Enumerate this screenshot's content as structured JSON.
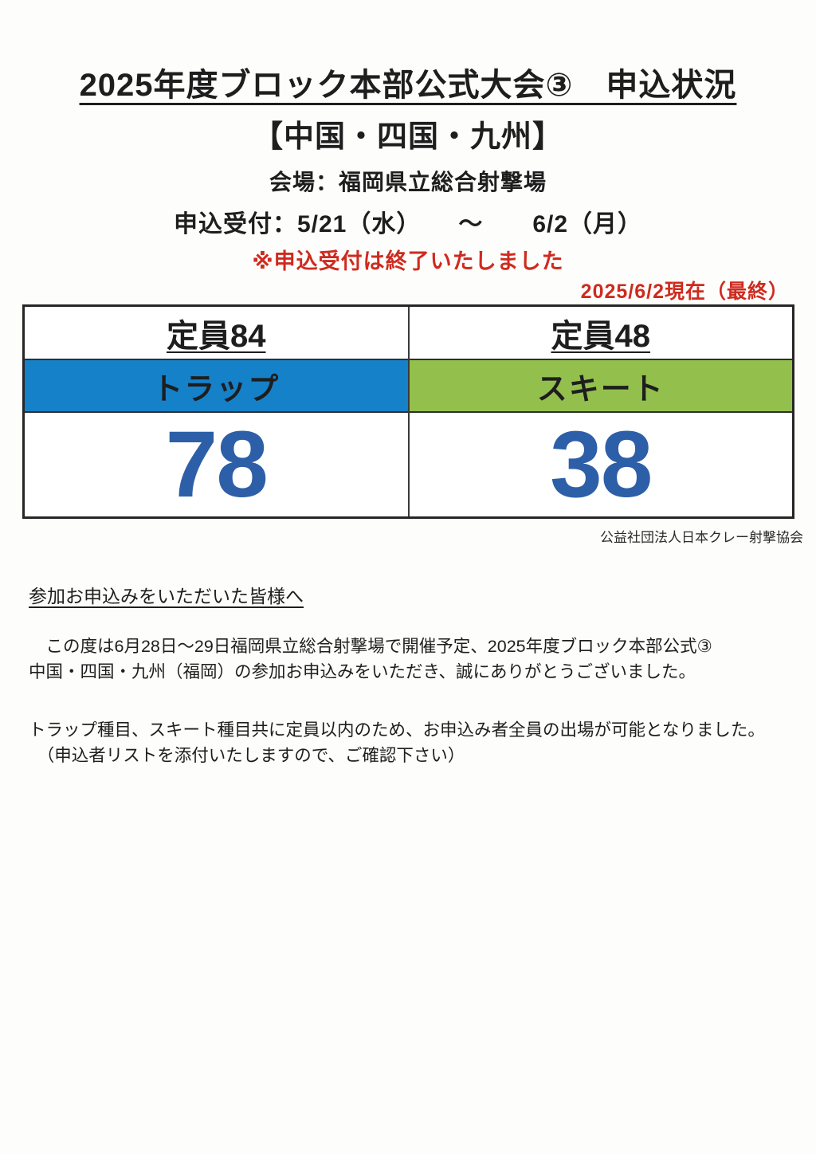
{
  "header": {
    "title_line1": "2025年度ブロック本部公式大会③　申込状況",
    "title_line2": "【中国・四国・九州】",
    "venue": "会場：福岡県立総合射撃場",
    "application_period": "申込受付：5/21（水）　　～　　6/2（月）",
    "closed_notice": "※申込受付は終了いたしました",
    "as_of": "2025/6/2現在（最終）"
  },
  "table": {
    "columns": [
      {
        "capacity_label": "定員84",
        "event_label": "トラップ",
        "count": "78",
        "color": "#1581c9"
      },
      {
        "capacity_label": "定員48",
        "event_label": "スキート",
        "count": "38",
        "color": "#93c04c"
      }
    ]
  },
  "attribution": "公益社団法人日本クレー射撃協会",
  "body": {
    "greeting_heading": "参加お申込みをいただいた皆様へ",
    "paragraph1_line1": "　この度は6月28日～29日福岡県立総合射撃場で開催予定、2025年度ブロック本部公式③",
    "paragraph1_line2": "中国・四国・九州（福岡）の参加お申込みをいただき、誠にありがとうございました。",
    "paragraph2_line1": "トラップ種目、スキート種目共に定員以内のため、お申込み者全員の出場が可能となりました。",
    "paragraph2_line2": "　（申込者リストを添付いたしますので、ご確認下さい）"
  },
  "colors": {
    "trap_blue": "#1581c9",
    "skeet_green": "#93c04c",
    "count_blue": "#2d5fa8",
    "notice_red": "#cf2a1e",
    "text_black": "#1e1e1e"
  }
}
